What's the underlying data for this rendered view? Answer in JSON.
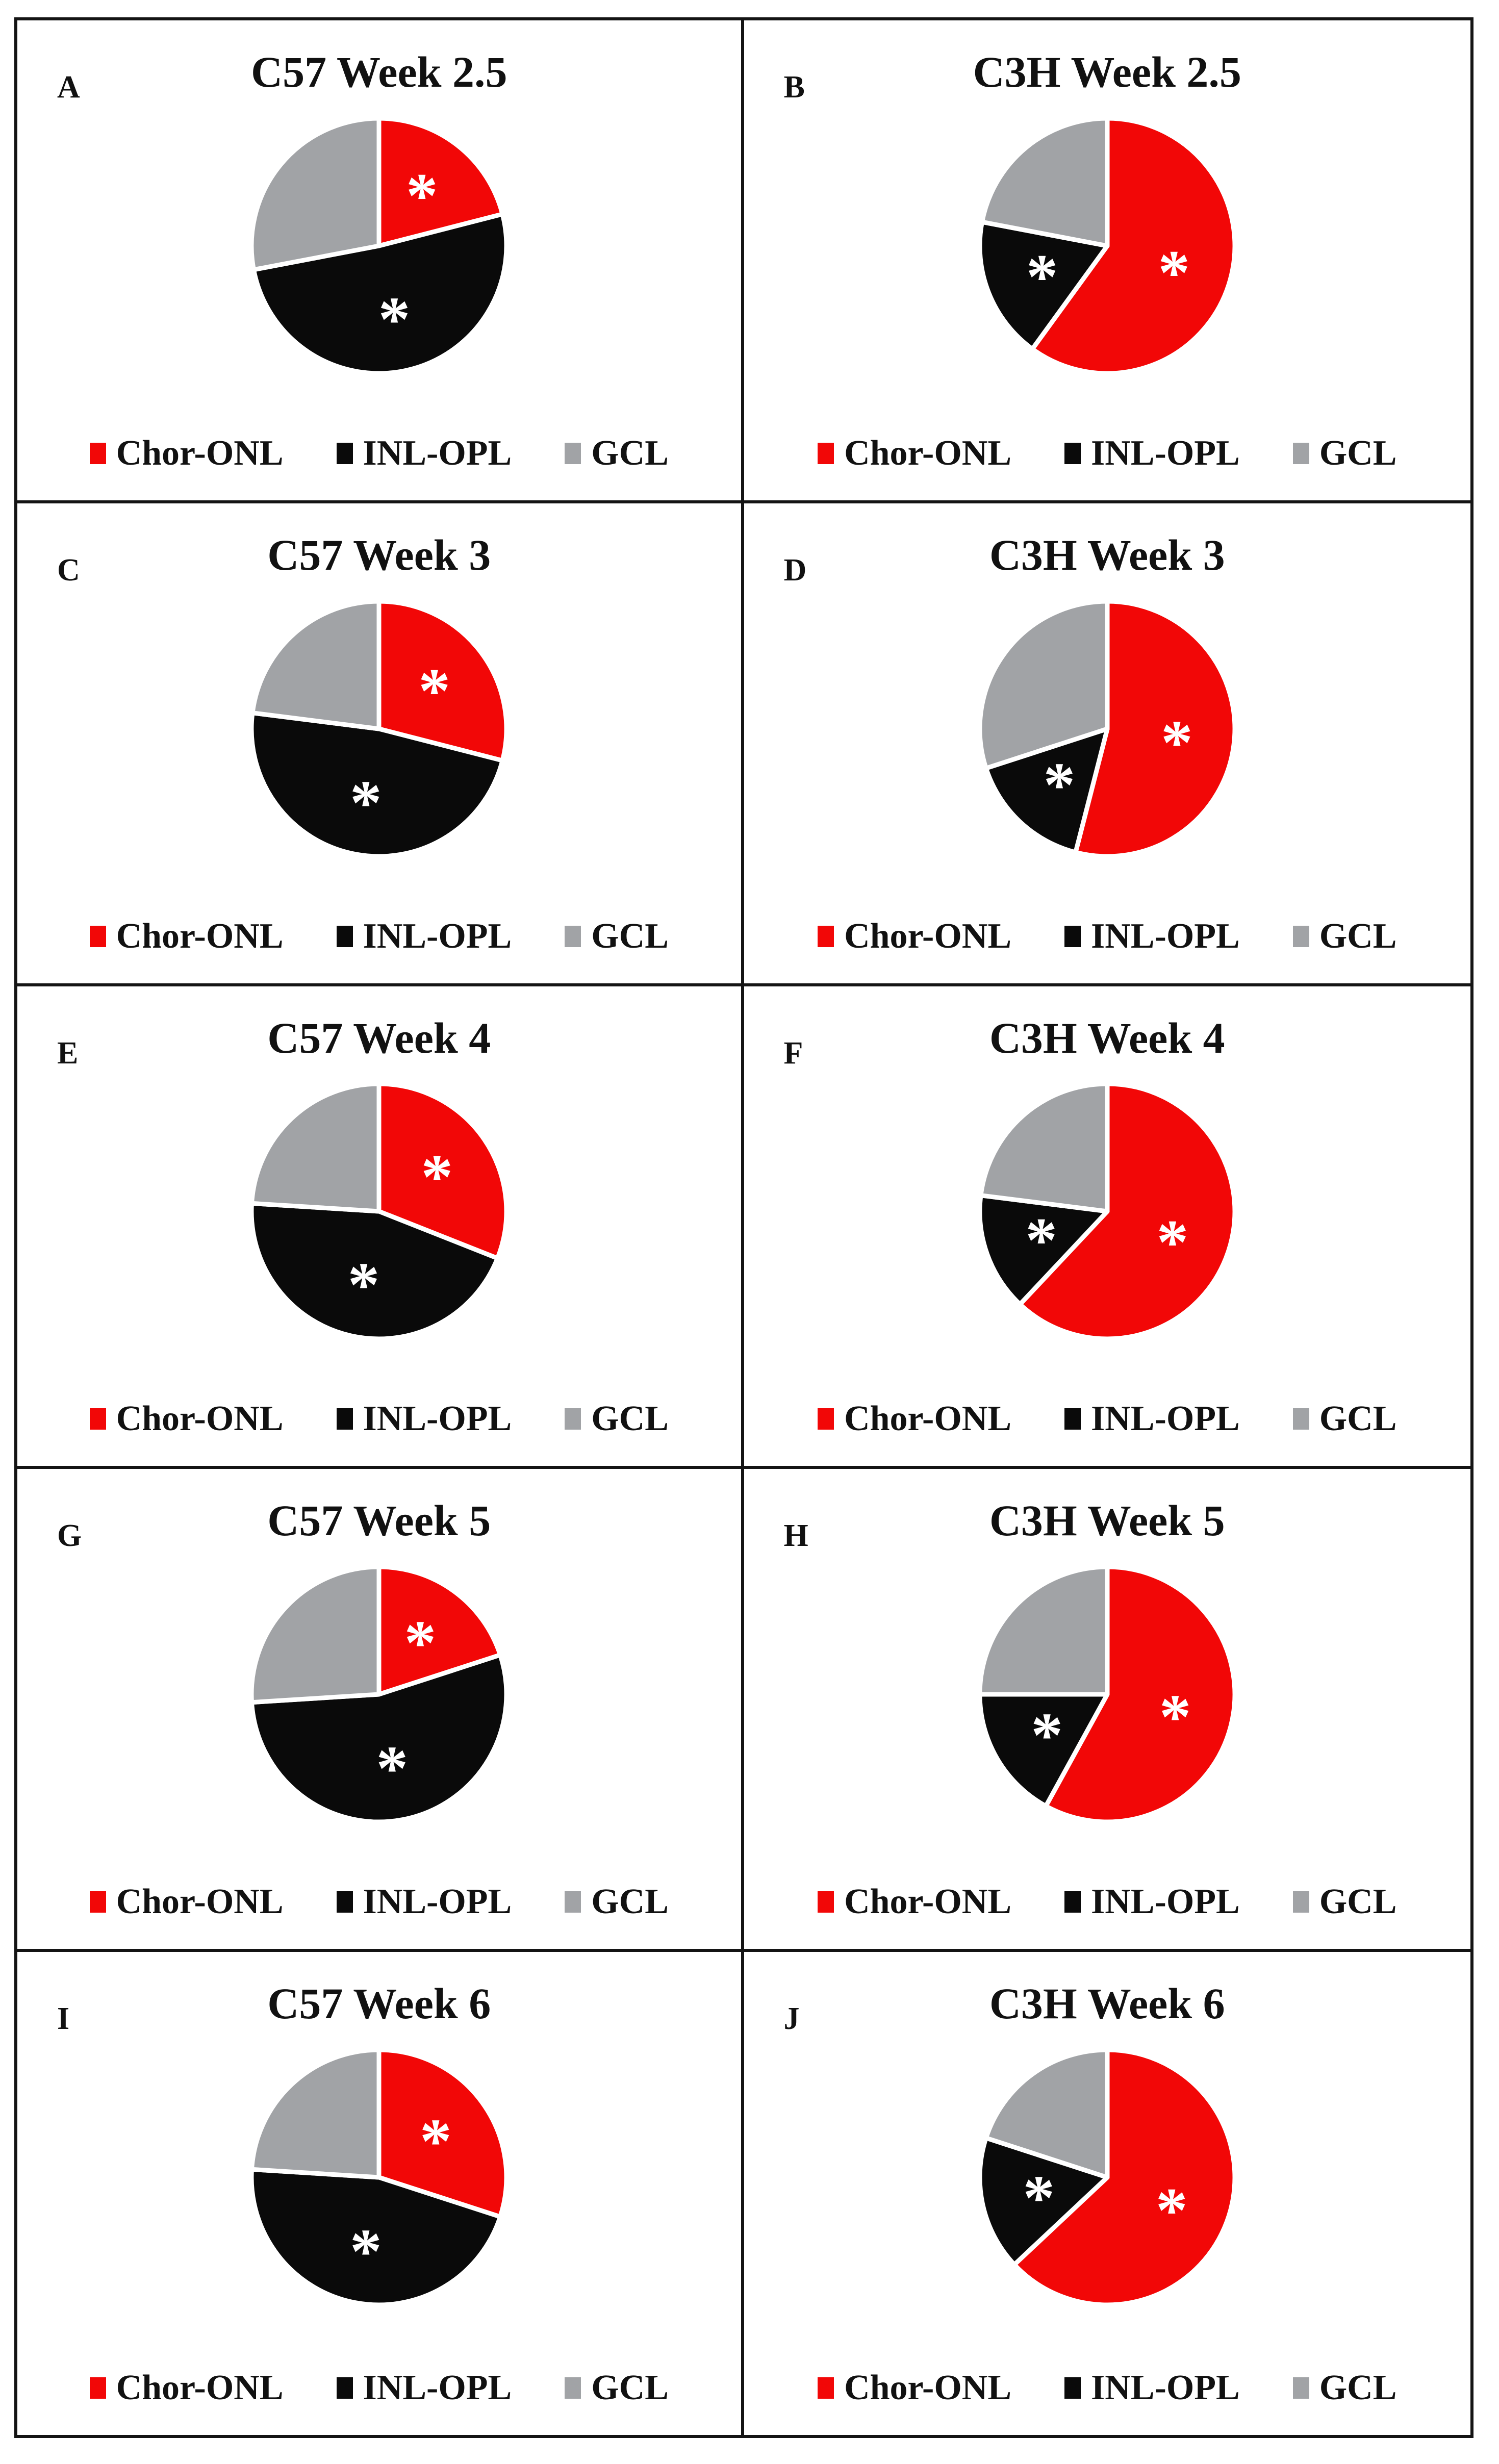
{
  "figure": {
    "background": "#ffffff",
    "border_color": "#141414",
    "grid": "2 columns x 5 rows of pie chart panels"
  },
  "colors": {
    "chor_onl": "#f20707",
    "inl_opl": "#0a0a0a",
    "gcl": "#a1a3a6",
    "slice_separator": "#ffffff",
    "asterisk": "#ffffff",
    "text": "#111111"
  },
  "legend": {
    "items": [
      {
        "label": "Chor-ONL",
        "color_key": "chor_onl"
      },
      {
        "label": "INL-OPL",
        "color_key": "inl_opl"
      },
      {
        "label": "GCL",
        "color_key": "gcl"
      }
    ]
  },
  "chart_data": [
    {
      "type": "pie",
      "panel": "A",
      "title": "C57 Week 2.5",
      "labels": [
        "Chor-ONL",
        "INL-OPL",
        "GCL"
      ],
      "values": [
        21,
        51,
        28
      ],
      "colors_keys": [
        "chor_onl",
        "inl_opl",
        "gcl"
      ],
      "asterisk_slices": [
        0,
        1
      ],
      "start_angle_deg": 0,
      "direction": "clockwise",
      "legend_position": "bottom"
    },
    {
      "type": "pie",
      "panel": "B",
      "title": "C3H Week 2.5",
      "labels": [
        "Chor-ONL",
        "INL-OPL",
        "GCL"
      ],
      "values": [
        60,
        18,
        22
      ],
      "colors_keys": [
        "chor_onl",
        "inl_opl",
        "gcl"
      ],
      "asterisk_slices": [
        0,
        1
      ],
      "start_angle_deg": 0,
      "direction": "clockwise",
      "legend_position": "bottom"
    },
    {
      "type": "pie",
      "panel": "C",
      "title": "C57 Week 3",
      "labels": [
        "Chor-ONL",
        "INL-OPL",
        "GCL"
      ],
      "values": [
        29,
        48,
        23
      ],
      "colors_keys": [
        "chor_onl",
        "inl_opl",
        "gcl"
      ],
      "asterisk_slices": [
        0,
        1
      ],
      "start_angle_deg": 0,
      "direction": "clockwise",
      "legend_position": "bottom"
    },
    {
      "type": "pie",
      "panel": "D",
      "title": "C3H Week 3",
      "labels": [
        "Chor-ONL",
        "INL-OPL",
        "GCL"
      ],
      "values": [
        54,
        16,
        30
      ],
      "colors_keys": [
        "chor_onl",
        "inl_opl",
        "gcl"
      ],
      "asterisk_slices": [
        0,
        1
      ],
      "start_angle_deg": 0,
      "direction": "clockwise",
      "legend_position": "bottom"
    },
    {
      "type": "pie",
      "panel": "E",
      "title": "C57 Week 4",
      "labels": [
        "Chor-ONL",
        "INL-OPL",
        "GCL"
      ],
      "values": [
        31,
        45,
        24
      ],
      "colors_keys": [
        "chor_onl",
        "inl_opl",
        "gcl"
      ],
      "asterisk_slices": [
        0,
        1
      ],
      "start_angle_deg": 0,
      "direction": "clockwise",
      "legend_position": "bottom"
    },
    {
      "type": "pie",
      "panel": "F",
      "title": "C3H Week 4",
      "labels": [
        "Chor-ONL",
        "INL-OPL",
        "GCL"
      ],
      "values": [
        62,
        15,
        23
      ],
      "colors_keys": [
        "chor_onl",
        "inl_opl",
        "gcl"
      ],
      "asterisk_slices": [
        0,
        1
      ],
      "start_angle_deg": 0,
      "direction": "clockwise",
      "legend_position": "bottom"
    },
    {
      "type": "pie",
      "panel": "G",
      "title": "C57 Week 5",
      "labels": [
        "Chor-ONL",
        "INL-OPL",
        "GCL"
      ],
      "values": [
        20,
        54,
        26
      ],
      "colors_keys": [
        "chor_onl",
        "inl_opl",
        "gcl"
      ],
      "asterisk_slices": [
        0,
        1
      ],
      "start_angle_deg": 0,
      "direction": "clockwise",
      "legend_position": "bottom"
    },
    {
      "type": "pie",
      "panel": "H",
      "title": "C3H Week 5",
      "labels": [
        "Chor-ONL",
        "INL-OPL",
        "GCL"
      ],
      "values": [
        58,
        17,
        25
      ],
      "colors_keys": [
        "chor_onl",
        "inl_opl",
        "gcl"
      ],
      "asterisk_slices": [
        0,
        1
      ],
      "start_angle_deg": 0,
      "direction": "clockwise",
      "legend_position": "bottom"
    },
    {
      "type": "pie",
      "panel": "I",
      "title": "C57 Week 6",
      "labels": [
        "Chor-ONL",
        "INL-OPL",
        "GCL"
      ],
      "values": [
        30,
        46,
        24
      ],
      "colors_keys": [
        "chor_onl",
        "inl_opl",
        "gcl"
      ],
      "asterisk_slices": [
        0,
        1
      ],
      "start_angle_deg": 0,
      "direction": "clockwise",
      "legend_position": "bottom"
    },
    {
      "type": "pie",
      "panel": "J",
      "title": "C3H Week 6",
      "labels": [
        "Chor-ONL",
        "INL-OPL",
        "GCL"
      ],
      "values": [
        63,
        17,
        20
      ],
      "colors_keys": [
        "chor_onl",
        "inl_opl",
        "gcl"
      ],
      "asterisk_slices": [
        0,
        1
      ],
      "start_angle_deg": 0,
      "direction": "clockwise",
      "legend_position": "bottom"
    }
  ]
}
